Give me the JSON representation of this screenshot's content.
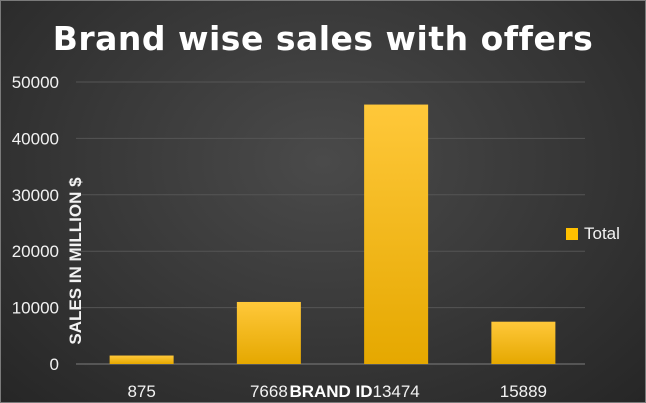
{
  "chart_data": {
    "type": "bar",
    "title": "Brand wise sales with offers",
    "xlabel": "BRAND ID",
    "ylabel": "SALES IN MILLION $",
    "categories": [
      "875",
      "7668",
      "13474",
      "15889"
    ],
    "series": [
      {
        "name": "Total",
        "values": [
          1500,
          11000,
          46000,
          7500
        ]
      }
    ],
    "ylim": [
      0,
      50000
    ],
    "yticks": [
      "0",
      "10000",
      "20000",
      "30000",
      "40000",
      "50000"
    ],
    "grid": true,
    "legend": "right",
    "bar_color": "#FFC000"
  }
}
